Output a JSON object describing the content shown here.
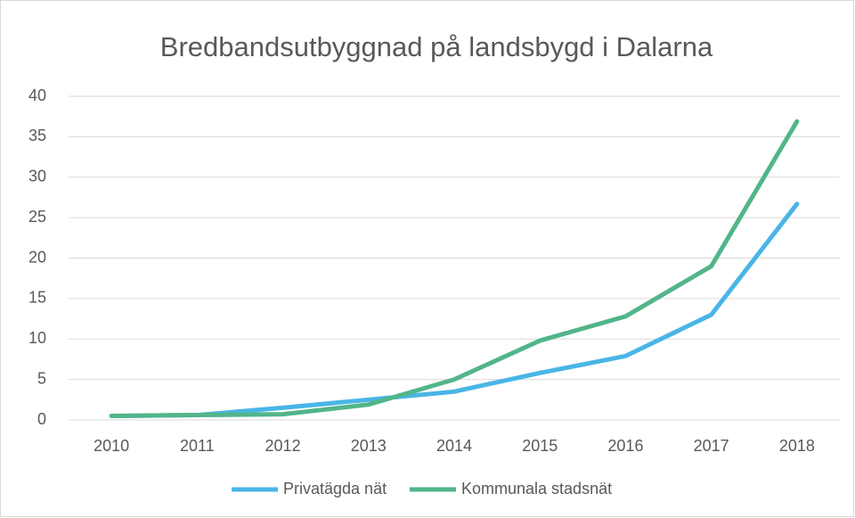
{
  "chart_data": {
    "type": "line",
    "title": "Bredbandsutbyggnad på landsbygd i Dalarna",
    "categories": [
      "2010",
      "2011",
      "2012",
      "2013",
      "2014",
      "2015",
      "2016",
      "2017",
      "2018"
    ],
    "series": [
      {
        "name": "Privatägda nät",
        "color": "#4ab5e6",
        "values": [
          0.5,
          0.6,
          1.5,
          2.5,
          3.5,
          5.8,
          7.9,
          13,
          26.7
        ]
      },
      {
        "name": "Kommunala stadsnät",
        "color": "#52b58a",
        "values": [
          0.5,
          0.6,
          0.7,
          1.9,
          5,
          9.8,
          12.8,
          19,
          36.9
        ]
      }
    ],
    "ylim": [
      0,
      40
    ],
    "yticks": [
      0,
      5,
      10,
      15,
      20,
      25,
      30,
      35,
      40
    ],
    "grid": true,
    "legend": "bottom"
  }
}
